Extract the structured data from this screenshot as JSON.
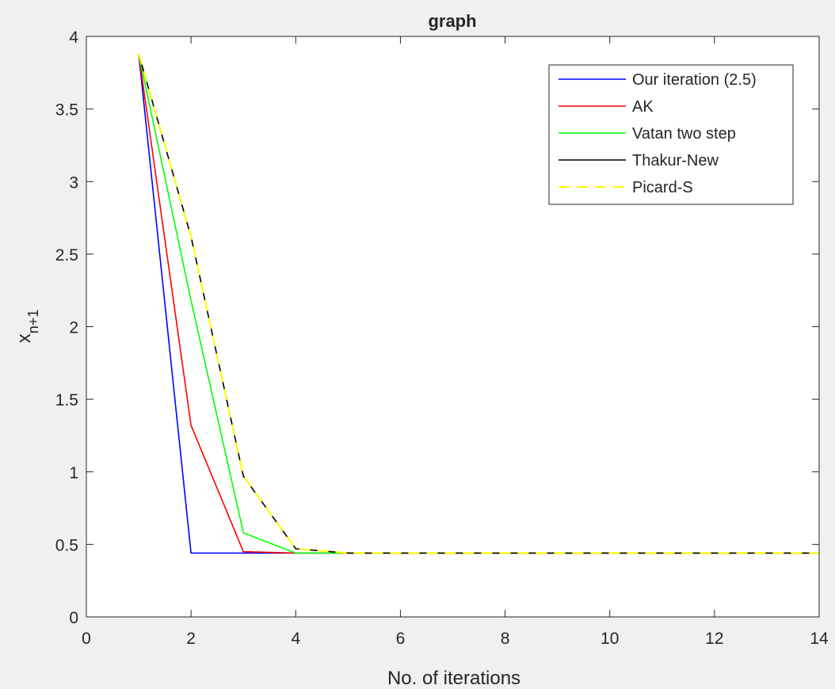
{
  "chart_data": {
    "type": "line",
    "title": "graph",
    "xlabel": "No. of iterations",
    "ylabel": {
      "base": "x",
      "subscript": "n+1"
    },
    "xlim": [
      0,
      14
    ],
    "ylim": [
      0,
      4
    ],
    "xticks": [
      0,
      2,
      4,
      6,
      8,
      10,
      12,
      14
    ],
    "yticks": [
      0,
      0.5,
      1,
      1.5,
      2,
      2.5,
      3,
      3.5,
      4
    ],
    "xtick_labels": [
      "0",
      "2",
      "4",
      "6",
      "8",
      "10",
      "12",
      "14"
    ],
    "ytick_labels": [
      "0",
      "0.5",
      "1",
      "1.5",
      "2",
      "2.5",
      "3",
      "3.5",
      "4"
    ],
    "grid": false,
    "legend_position": "top-right",
    "x": [
      1,
      2,
      3,
      4,
      5,
      6,
      7,
      8,
      9,
      10,
      11,
      12,
      13,
      14
    ],
    "series": [
      {
        "name": "Our iteration (2.5)",
        "color": "#0000ff",
        "dash": "solid",
        "values": [
          3.88,
          0.44,
          0.44,
          0.44,
          0.44,
          0.44,
          0.44,
          0.44,
          0.44,
          0.44,
          0.44,
          0.44,
          0.44,
          0.44
        ]
      },
      {
        "name": "AK",
        "color": "#ff0000",
        "dash": "solid",
        "values": [
          3.88,
          1.32,
          0.45,
          0.44,
          0.44,
          0.44,
          0.44,
          0.44,
          0.44,
          0.44,
          0.44,
          0.44,
          0.44,
          0.44
        ]
      },
      {
        "name": "Vatan two step",
        "color": "#00ff00",
        "dash": "solid",
        "values": [
          3.88,
          2.18,
          0.58,
          0.44,
          0.44,
          0.44,
          0.44,
          0.44,
          0.44,
          0.44,
          0.44,
          0.44,
          0.44,
          0.44
        ]
      },
      {
        "name": "Thakur-New",
        "color": "#000000",
        "dash": "solid",
        "values": [
          3.88,
          2.62,
          0.97,
          0.47,
          0.44,
          0.44,
          0.44,
          0.44,
          0.44,
          0.44,
          0.44,
          0.44,
          0.44,
          0.44
        ]
      },
      {
        "name": "Picard-S",
        "color": "#ffff00",
        "dash": "dashed",
        "values": [
          3.88,
          2.62,
          0.97,
          0.47,
          0.44,
          0.44,
          0.44,
          0.44,
          0.44,
          0.44,
          0.44,
          0.44,
          0.44,
          0.44
        ]
      }
    ]
  }
}
